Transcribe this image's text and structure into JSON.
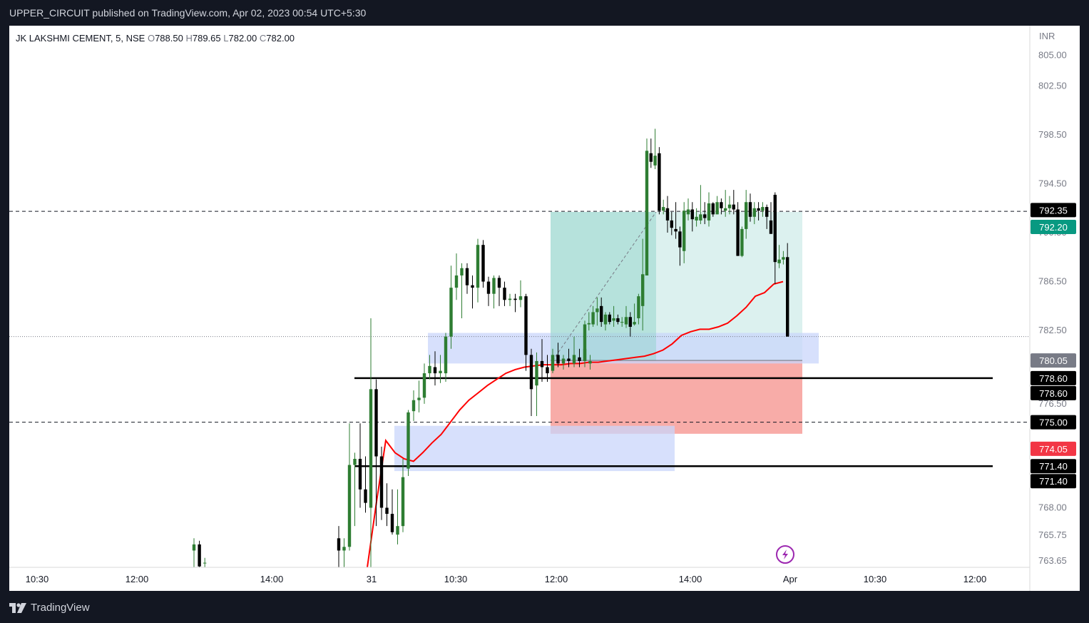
{
  "header": {
    "publisher": "UPPER_CIRCUIT published on TradingView.com, Apr 02, 2023 00:54 UTC+5:30"
  },
  "legend": {
    "symbol": "JK LAKSHMI CEMENT, 5, NSE",
    "o_label": "O",
    "o_value": "788.50",
    "h_label": "H",
    "h_value": "789.65",
    "l_label": "L",
    "l_value": "782.00",
    "c_label": "C",
    "c_value": "782.00"
  },
  "footer": {
    "brand": "TradingView"
  },
  "currency": "INR",
  "icon_flash": "flash-icon",
  "colors": {
    "up": "#2e7d32",
    "down": "#000000",
    "vwap": "#ff0000",
    "profit_zone": "#b2dfdb",
    "loss_zone": "#f8a8a3",
    "demand_zone": "#c9d6fb",
    "last_price_bg": "#089981",
    "stop_bg": "#f23645",
    "entry_bg": "#787b86"
  },
  "chart_data": {
    "type": "candlestick",
    "title": "",
    "xlabel": "",
    "ylabel": "",
    "ylim": [
      763.0,
      807.0
    ],
    "y_ticks": [
      "805.00",
      "802.50",
      "798.50",
      "794.50",
      "790.50",
      "786.50",
      "782.50",
      "778.50",
      "776.50",
      "768.00",
      "765.75",
      "763.65"
    ],
    "x_ticks": [
      "10:30",
      "12:00",
      "14:00",
      "31",
      "10:30",
      "12:00",
      "14:00",
      "Apr",
      "10:30",
      "12:00"
    ],
    "price_tags": [
      {
        "label": "792.35",
        "price": 792.35,
        "style": "black"
      },
      {
        "label": "792.20",
        "price": 792.2,
        "style": "green"
      },
      {
        "label": "780.05",
        "price": 780.05,
        "style": "gray"
      },
      {
        "label": "778.60",
        "price": 778.6,
        "style": "black"
      },
      {
        "label": "778.60",
        "price": 778.6,
        "style": "black"
      },
      {
        "label": "775.00",
        "price": 775.0,
        "style": "black"
      },
      {
        "label": "774.05",
        "price": 774.05,
        "style": "red"
      },
      {
        "label": "771.40",
        "price": 771.4,
        "style": "black"
      },
      {
        "label": "771.40",
        "price": 771.4,
        "style": "black"
      }
    ],
    "horizontal_lines": [
      {
        "price": 792.25,
        "style": "dashed"
      },
      {
        "price": 775.0,
        "style": "dashed"
      },
      {
        "price": 778.6,
        "style": "solid"
      },
      {
        "price": 771.4,
        "style": "solid"
      },
      {
        "price": 782.0,
        "style": "dotted"
      }
    ],
    "zones": [
      {
        "name": "profit",
        "from": 780.05,
        "to": 792.2
      },
      {
        "name": "loss",
        "from": 774.05,
        "to": 780.05
      },
      {
        "name": "demand-upper",
        "from": 779.8,
        "to": 782.3
      },
      {
        "name": "demand-lower",
        "from": 771.0,
        "to": 774.7
      }
    ],
    "candles": [
      [
        764.5,
        765.5,
        763.0,
        765.0
      ],
      [
        765.0,
        765.3,
        763.0,
        763.2
      ],
      [
        763.5,
        763.9,
        763.0,
        763.5
      ],
      [
        765.5,
        766.5,
        763.0,
        764.5
      ],
      [
        764.5,
        765.5,
        763.0,
        764.8
      ],
      [
        764.8,
        774.9,
        764.5,
        771.5
      ],
      [
        771.5,
        772.5,
        766.5,
        772.0
      ],
      [
        772.0,
        774.9,
        768.0,
        769.5
      ],
      [
        769.5,
        772.2,
        767.6,
        768.4
      ],
      [
        768.0,
        783.5,
        763.0,
        777.7
      ],
      [
        777.7,
        778.5,
        766.5,
        772.2
      ],
      [
        772.2,
        773.0,
        767.0,
        768.0
      ],
      [
        768.0,
        770.0,
        766.5,
        767.5
      ],
      [
        767.5,
        769.5,
        765.8,
        766.0
      ],
      [
        765.8,
        769.5,
        765.0,
        766.5
      ],
      [
        766.5,
        772.0,
        766.0,
        770.5
      ],
      [
        771.2,
        776.0,
        770.6,
        775.8
      ],
      [
        775.9,
        777.6,
        775.1,
        776.8
      ],
      [
        776.8,
        778.4,
        775.8,
        777.0
      ],
      [
        777.0,
        779.8,
        776.5,
        779.0
      ],
      [
        779.0,
        780.5,
        778.5,
        779.6
      ],
      [
        779.5,
        780.8,
        778.0,
        779.0
      ],
      [
        779.0,
        780.5,
        778.2,
        779.2
      ],
      [
        779.0,
        782.3,
        778.3,
        782.0
      ],
      [
        782.0,
        787.8,
        781.0,
        786.0
      ],
      [
        786.0,
        788.8,
        785.0,
        787.0
      ],
      [
        787.0,
        788.0,
        783.5,
        787.6
      ],
      [
        787.6,
        788.0,
        785.5,
        786.2
      ],
      [
        786.2,
        787.0,
        784.3,
        786.0
      ],
      [
        786.0,
        790.0,
        784.8,
        789.5
      ],
      [
        789.5,
        789.9,
        786.0,
        786.5
      ],
      [
        786.5,
        786.9,
        784.5,
        785.5
      ],
      [
        785.5,
        787.0,
        784.3,
        786.8
      ],
      [
        786.8,
        787.0,
        784.5,
        786.0
      ],
      [
        786.0,
        786.5,
        784.5,
        785.0
      ],
      [
        785.0,
        785.5,
        784.5,
        785.1
      ],
      [
        785.1,
        785.5,
        784.0,
        785.0
      ],
      [
        785.0,
        786.6,
        784.4,
        785.3
      ],
      [
        785.3,
        785.5,
        779.2,
        780.5
      ],
      [
        780.5,
        781.0,
        775.5,
        777.7
      ],
      [
        778.0,
        780.7,
        775.5,
        780.0
      ],
      [
        780.0,
        781.8,
        778.3,
        779.5
      ],
      [
        779.5,
        780.5,
        778.3,
        779.0
      ],
      [
        779.2,
        781.0,
        779.0,
        780.5
      ],
      [
        780.5,
        781.5,
        779.5,
        779.8
      ],
      [
        779.8,
        780.5,
        779.3,
        780.2
      ],
      [
        780.2,
        781.0,
        779.5,
        780.0
      ],
      [
        779.8,
        782.0,
        779.5,
        780.5
      ],
      [
        780.3,
        781.0,
        779.5,
        780.0
      ],
      [
        780.0,
        782.5,
        779.5,
        781.0
      ],
      [
        779.8,
        780.5,
        779.3,
        780.0
      ],
      [
        780.0,
        783.3,
        779.7,
        783.0
      ],
      [
        783.0,
        784.0,
        782.5,
        783.1
      ],
      [
        783.0,
        784.5,
        782.8,
        784.0
      ],
      [
        784.0,
        785.2,
        782.9,
        784.3
      ],
      [
        784.5,
        785.2,
        782.8,
        783.2
      ],
      [
        783.0,
        784.0,
        782.5,
        783.8
      ],
      [
        783.8,
        784.0,
        783.0,
        783.2
      ],
      [
        783.3,
        784.5,
        782.8,
        783.5
      ],
      [
        783.5,
        783.8,
        783.0,
        783.2
      ],
      [
        783.2,
        783.6,
        782.8,
        783.2
      ],
      [
        783.0,
        784.5,
        782.7,
        783.6
      ],
      [
        783.6,
        784.0,
        782.0,
        782.8
      ],
      [
        783.0,
        784.7,
        782.9,
        783.2
      ],
      [
        783.5,
        785.5,
        783.0,
        785.3
      ],
      [
        784.5,
        790.0,
        782.5,
        787.1
      ],
      [
        787.0,
        798.2,
        787.0,
        797.2
      ],
      [
        797.0,
        798.2,
        795.8,
        796.3
      ],
      [
        796.0,
        799.0,
        795.7,
        796.8
      ],
      [
        797.0,
        797.5,
        792.0,
        792.3
      ],
      [
        792.3,
        793.2,
        792.0,
        792.6
      ],
      [
        792.5,
        793.5,
        790.5,
        791.5
      ],
      [
        791.5,
        792.2,
        790.3,
        790.9
      ],
      [
        790.8,
        793.0,
        790.0,
        790.6
      ],
      [
        790.6,
        791.0,
        787.8,
        789.3
      ],
      [
        789.0,
        793.0,
        788.0,
        792.3
      ],
      [
        792.0,
        793.3,
        791.5,
        792.4
      ],
      [
        792.4,
        793.0,
        790.6,
        791.6
      ],
      [
        791.5,
        792.5,
        791.0,
        791.8
      ],
      [
        791.5,
        794.4,
        791.2,
        792.0
      ],
      [
        792.0,
        793.0,
        791.2,
        791.7
      ],
      [
        791.5,
        793.8,
        791.0,
        792.9
      ],
      [
        792.9,
        793.0,
        791.8,
        792.0
      ],
      [
        792.0,
        793.5,
        792.0,
        793.0
      ],
      [
        793.0,
        793.3,
        792.0,
        792.5
      ],
      [
        792.3,
        794.0,
        791.8,
        792.5
      ],
      [
        792.5,
        793.5,
        792.0,
        792.8
      ],
      [
        792.8,
        794.0,
        792.0,
        792.4
      ],
      [
        792.4,
        793.0,
        788.6,
        788.6
      ],
      [
        788.6,
        791.0,
        788.5,
        790.8
      ],
      [
        790.8,
        794.0,
        790.0,
        793.0
      ],
      [
        793.0,
        793.7,
        791.4,
        791.8
      ],
      [
        791.8,
        793.0,
        791.2,
        792.5
      ],
      [
        792.5,
        793.0,
        791.5,
        792.3
      ],
      [
        792.3,
        793.0,
        791.8,
        792.6
      ],
      [
        792.6,
        792.8,
        790.8,
        791.8
      ],
      [
        791.5,
        793.0,
        790.5,
        790.4
      ],
      [
        793.6,
        793.8,
        786.3,
        788.1
      ],
      [
        788.0,
        789.5,
        787.6,
        788.3
      ],
      [
        788.3,
        789.0,
        787.9,
        788.5
      ],
      [
        788.5,
        789.65,
        782.0,
        782.0
      ]
    ],
    "vwap": [
      763.0,
      768.5,
      773.5,
      772.5,
      772.0,
      771.8,
      772.5,
      773.3,
      774.0,
      775.0,
      776.0,
      776.8,
      777.4,
      778.0,
      778.5,
      779.0,
      779.3,
      779.5,
      779.6,
      779.7,
      779.7,
      779.7,
      779.8,
      779.8,
      779.9,
      779.9,
      780.0,
      780.1,
      780.2,
      780.3,
      780.4,
      780.6,
      780.9,
      781.4,
      782.1,
      782.4,
      782.6,
      782.6,
      782.8,
      783.1,
      783.7,
      784.4,
      785.3,
      785.6,
      786.3,
      786.5
    ]
  }
}
